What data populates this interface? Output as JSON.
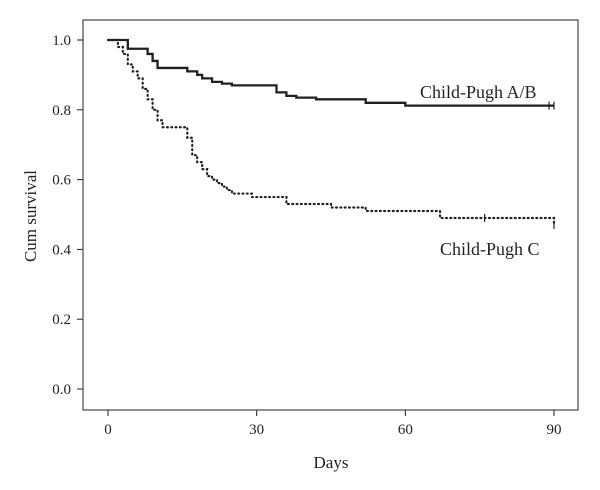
{
  "chart_data": {
    "type": "line",
    "title": "",
    "xlabel": "Days",
    "ylabel": "Cum survival",
    "xlim": [
      0,
      90
    ],
    "ylim": [
      0,
      1
    ],
    "x_ticks": [
      "0",
      "30",
      "60",
      "90"
    ],
    "y_ticks": [
      "0.0",
      "0.2",
      "0.4",
      "0.6",
      "0.8",
      "1.0"
    ],
    "grid": false,
    "legend": "none",
    "series": [
      {
        "name": "Child-Pugh A/B",
        "line_style": "solid",
        "color": "#231f20",
        "x": [
          0,
          4,
          8,
          9,
          10,
          16,
          18,
          19,
          21,
          23,
          25,
          34,
          36,
          38,
          42,
          52,
          60,
          90
        ],
        "y": [
          1.0,
          0.975,
          0.96,
          0.94,
          0.92,
          0.91,
          0.9,
          0.89,
          0.88,
          0.875,
          0.87,
          0.85,
          0.84,
          0.835,
          0.83,
          0.82,
          0.812,
          0.812
        ],
        "censored_x": [
          89,
          90
        ],
        "censored_y": [
          0.812,
          0.812
        ]
      },
      {
        "name": "Child-Pugh C",
        "line_style": "dotted",
        "color": "#231f20",
        "x": [
          0,
          2,
          3,
          4,
          5,
          6,
          7,
          8,
          9,
          10,
          11,
          16,
          17,
          18,
          19,
          20,
          21,
          22,
          23,
          24,
          25,
          29,
          36,
          45,
          52,
          67,
          90
        ],
        "y": [
          1.0,
          0.98,
          0.96,
          0.93,
          0.91,
          0.89,
          0.86,
          0.83,
          0.8,
          0.77,
          0.75,
          0.72,
          0.67,
          0.65,
          0.63,
          0.61,
          0.6,
          0.59,
          0.58,
          0.57,
          0.56,
          0.55,
          0.53,
          0.52,
          0.51,
          0.49,
          0.47
        ],
        "censored_x": [
          76,
          90
        ],
        "censored_y": [
          0.49,
          0.47
        ]
      }
    ],
    "annotations": [
      {
        "text": "Child-Pugh A/B",
        "series": 0
      },
      {
        "text": "Child-Pugh C",
        "series": 1
      }
    ]
  }
}
